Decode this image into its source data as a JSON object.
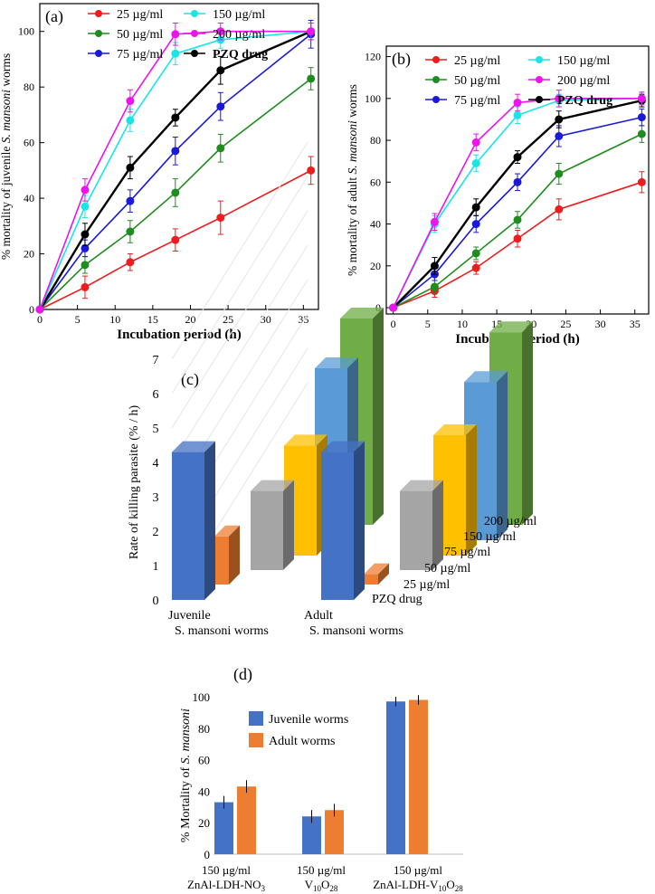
{
  "chart_data": [
    {
      "type": "line",
      "panel_label": "(a)",
      "title": "",
      "xlabel": "Incubation period (h)",
      "ylabel_parts": [
        "% mortality of juvenile ",
        "S. mansoni",
        " worms"
      ],
      "xlim": [
        0,
        37
      ],
      "ylim": [
        0,
        110
      ],
      "xticks": [
        0,
        5,
        10,
        15,
        20,
        25,
        30,
        35
      ],
      "yticks": [
        0,
        20,
        40,
        60,
        80,
        100
      ],
      "x": [
        0,
        6,
        12,
        18,
        24,
        36
      ],
      "grid": false,
      "series": [
        {
          "name": "25 µg/ml",
          "color": "#ee1c1c",
          "values": [
            0,
            8,
            17,
            25,
            33,
            50
          ],
          "errors": [
            0,
            4,
            3,
            4,
            6,
            5
          ]
        },
        {
          "name": "50 µg/ml",
          "color": "#1e8c1e",
          "values": [
            0,
            16,
            28,
            42,
            58,
            83
          ],
          "errors": [
            0,
            3,
            4,
            5,
            5,
            4
          ]
        },
        {
          "name": "75 µg/ml",
          "color": "#1a1ad6",
          "values": [
            0,
            22,
            39,
            57,
            73,
            99
          ],
          "errors": [
            0,
            3,
            4,
            5,
            5,
            5
          ]
        },
        {
          "name": "150 µg/ml",
          "color": "#18e6e6",
          "values": [
            0,
            37,
            68,
            92,
            97,
            100
          ],
          "errors": [
            0,
            4,
            4,
            4,
            3,
            3
          ]
        },
        {
          "name": "200 µg/ml",
          "color": "#ec14ec",
          "values": [
            0,
            43,
            75,
            99,
            100,
            100
          ],
          "errors": [
            0,
            4,
            4,
            4,
            3,
            3
          ]
        },
        {
          "name": "PZQ drug",
          "color": "#000000",
          "values": [
            0,
            27,
            51,
            69,
            86,
            100
          ],
          "errors": [
            0,
            4,
            4,
            3,
            5,
            3
          ]
        }
      ]
    },
    {
      "type": "line",
      "panel_label": "(b)",
      "title": "",
      "xlabel": "Incubation period (h)",
      "ylabel_parts": [
        "% mortality of adult ",
        "S. mansoni",
        " worms"
      ],
      "xlim": [
        -1,
        37
      ],
      "ylim": [
        -3,
        125
      ],
      "xticks": [
        0,
        5,
        10,
        15,
        20,
        25,
        30,
        35
      ],
      "yticks": [
        0,
        20,
        40,
        60,
        80,
        100,
        120
      ],
      "x": [
        0,
        6,
        12,
        18,
        24,
        36
      ],
      "grid": false,
      "series": [
        {
          "name": "25 µg/ml",
          "color": "#ee1c1c",
          "values": [
            0,
            8,
            19,
            33,
            47,
            60
          ],
          "errors": [
            0,
            3,
            3,
            4,
            5,
            5
          ]
        },
        {
          "name": "50 µg/ml",
          "color": "#1e8c1e",
          "values": [
            0,
            10,
            26,
            42,
            64,
            83
          ],
          "errors": [
            0,
            3,
            3,
            4,
            5,
            4
          ]
        },
        {
          "name": "75 µg/ml",
          "color": "#1a1ad6",
          "values": [
            0,
            16,
            40,
            60,
            82,
            91
          ],
          "errors": [
            0,
            3,
            4,
            4,
            5,
            4
          ]
        },
        {
          "name": "150 µg/ml",
          "color": "#18e6e6",
          "values": [
            0,
            40,
            69,
            92,
            99,
            100
          ],
          "errors": [
            0,
            4,
            4,
            4,
            3,
            3
          ]
        },
        {
          "name": "200 µg/ml",
          "color": "#ec14ec",
          "values": [
            0,
            41,
            79,
            98,
            100,
            100
          ],
          "errors": [
            0,
            4,
            4,
            4,
            4,
            3
          ]
        },
        {
          "name": "PZQ drug",
          "color": "#000000",
          "values": [
            0,
            20,
            48,
            72,
            90,
            99
          ],
          "errors": [
            0,
            4,
            4,
            3,
            4,
            3
          ]
        }
      ]
    },
    {
      "type": "bar",
      "panel_label": "(c)",
      "title": "",
      "ylabel": "Rate of killing parasite (% / h)",
      "ylim": [
        0,
        7
      ],
      "yticks": [
        "0",
        "1",
        "2",
        "3",
        "4",
        "5",
        "6",
        "7"
      ],
      "groups": [
        {
          "line1": "Juvenile",
          "line2": "S. mansoni worms"
        },
        {
          "line1": "Adult",
          "line2": "S. mansoni worms"
        }
      ],
      "series": [
        {
          "name": "PZQ drug",
          "color": "#4472c4",
          "values": [
            4.3,
            4.3
          ]
        },
        {
          "name": "25 µg/ml",
          "color": "#ed7d31",
          "values": [
            1.4,
            0.3
          ]
        },
        {
          "name": "50 µg/ml",
          "color": "#a5a5a5",
          "values": [
            2.3,
            2.3
          ]
        },
        {
          "name": "75 µg/ml",
          "color": "#ffc000",
          "values": [
            3.2,
            3.5
          ]
        },
        {
          "name": "150 µg/ml",
          "color": "#5b9bd5",
          "values": [
            5.0,
            4.6
          ]
        },
        {
          "name": "200 µg/ml",
          "color": "#70ad47",
          "values": [
            6.0,
            5.6
          ]
        }
      ]
    },
    {
      "type": "bar",
      "panel_label": "(d)",
      "title": "",
      "ylabel_parts": [
        "% Mortality of ",
        "S. mansoni"
      ],
      "ylim": [
        0,
        100
      ],
      "yticks": [
        0,
        20,
        40,
        60,
        80,
        100
      ],
      "categories": [
        {
          "line1": "150 µg/ml",
          "line2_main": "ZnAl-LDH-NO",
          "line2_sub": "3",
          "line2_rest": ""
        },
        {
          "line1": "150 µg/ml",
          "line2_main": "V",
          "line2_sub": "10",
          "line2_rest": "O",
          "line2_sub2": "28"
        },
        {
          "line1": "150 µg/ml",
          "line2_main": "ZnAl-LDH-V",
          "line2_sub": "10",
          "line2_rest": "O",
          "line2_sub2": "28"
        }
      ],
      "series": [
        {
          "name": "Juvenile worms",
          "color": "#4472c4",
          "values": [
            33,
            24,
            97
          ],
          "errors": [
            4,
            4,
            3
          ]
        },
        {
          "name": "Adult worms",
          "color": "#ed7d31",
          "values": [
            43,
            28,
            98
          ],
          "errors": [
            4,
            4,
            3
          ]
        }
      ]
    }
  ]
}
